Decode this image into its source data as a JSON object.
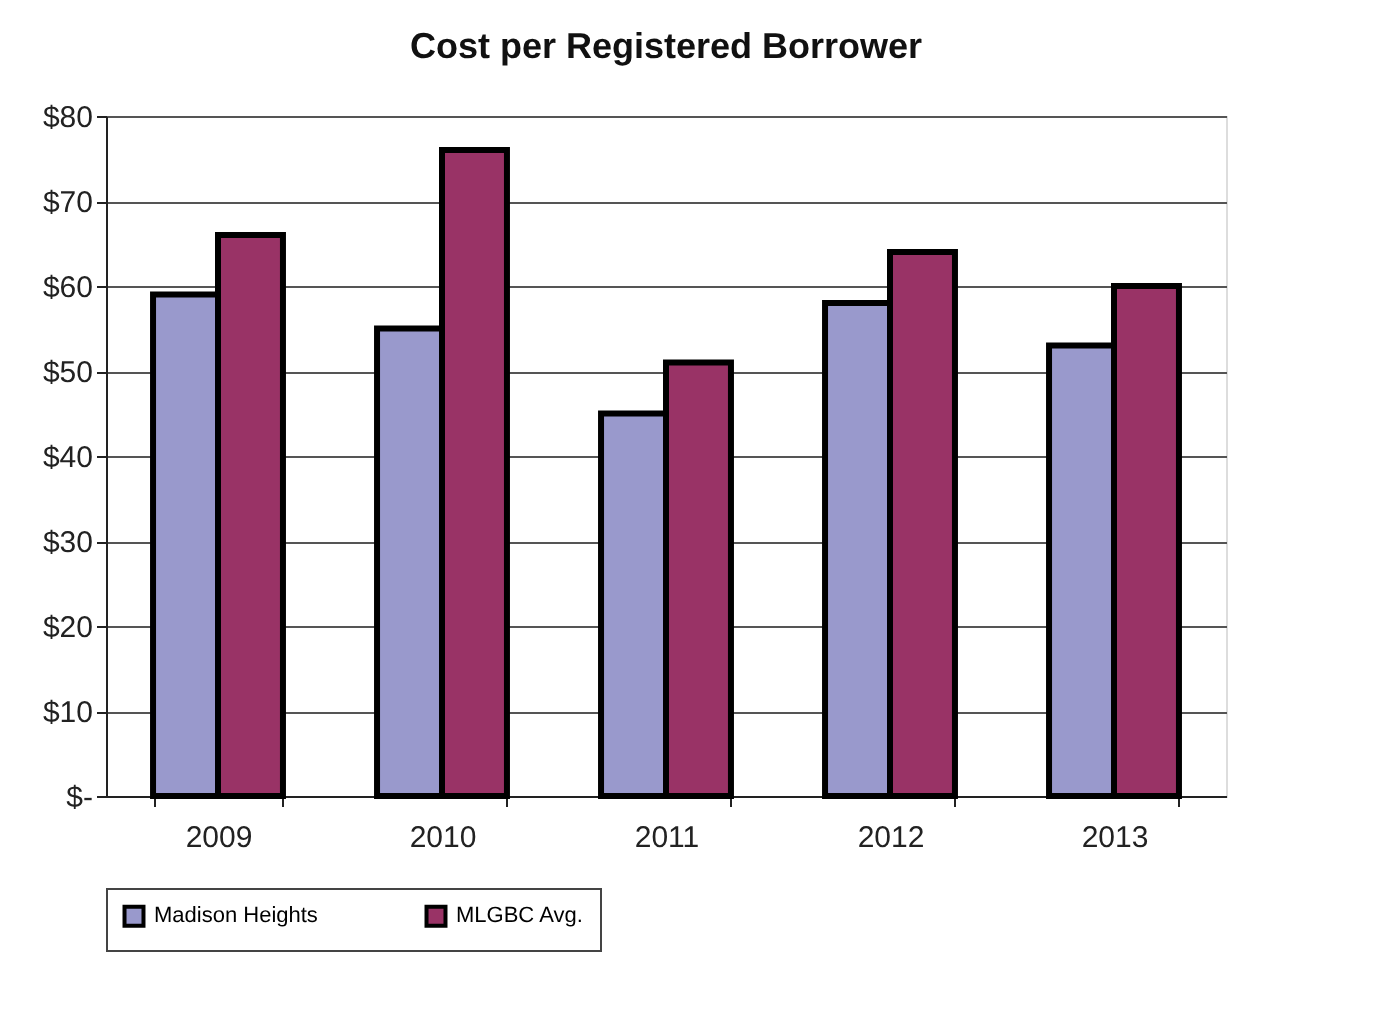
{
  "chart_data": {
    "type": "bar",
    "title": "Cost per Registered Borrower",
    "categories": [
      "2009",
      "2010",
      "2011",
      "2012",
      "2013"
    ],
    "series": [
      {
        "name": "Madison Heights",
        "color": "#9999cc",
        "values": [
          59,
          55,
          45,
          58,
          53
        ]
      },
      {
        "name": "MLGBC Avg.",
        "color": "#993366",
        "values": [
          66,
          76,
          51,
          64,
          60
        ]
      }
    ],
    "ylim": [
      0,
      80
    ],
    "yticks": [
      {
        "value": 0,
        "label": "$-"
      },
      {
        "value": 10,
        "label": "$10"
      },
      {
        "value": 20,
        "label": "$20"
      },
      {
        "value": 30,
        "label": "$30"
      },
      {
        "value": 40,
        "label": "$40"
      },
      {
        "value": 50,
        "label": "$50"
      },
      {
        "value": 60,
        "label": "$60"
      },
      {
        "value": 70,
        "label": "$70"
      },
      {
        "value": 80,
        "label": "$80"
      }
    ],
    "grid": "y",
    "legend": "bottom"
  }
}
